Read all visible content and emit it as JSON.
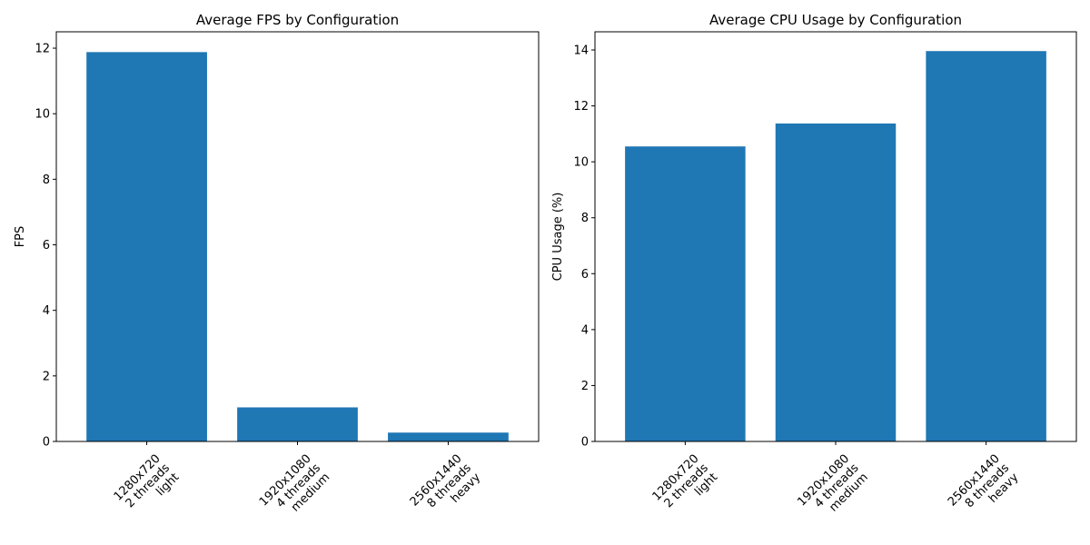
{
  "chart_data": [
    {
      "type": "bar",
      "title": "Average FPS by Configuration",
      "xlabel": "",
      "ylabel": "FPS",
      "categories": [
        "1280x720\n2 threads\nlight",
        "1920x1080\n4 threads\nmedium",
        "2560x1440\n8 threads\nheavy"
      ],
      "values": [
        11.88,
        1.04,
        0.27
      ],
      "ylim": [
        0,
        12.5
      ],
      "yticks": [
        0,
        2,
        4,
        6,
        8,
        10,
        12
      ],
      "grid": false,
      "color": "#1f77b4"
    },
    {
      "type": "bar",
      "title": "Average CPU Usage by Configuration",
      "xlabel": "",
      "ylabel": "CPU Usage (%)",
      "categories": [
        "1280x720\n2 threads\nlight",
        "1920x1080\n4 threads\nmedium",
        "2560x1440\n8 threads\nheavy"
      ],
      "values": [
        10.55,
        11.37,
        13.96
      ],
      "ylim": [
        0,
        14.65
      ],
      "yticks": [
        0,
        2,
        4,
        6,
        8,
        10,
        12,
        14
      ],
      "grid": false,
      "color": "#1f77b4"
    }
  ]
}
